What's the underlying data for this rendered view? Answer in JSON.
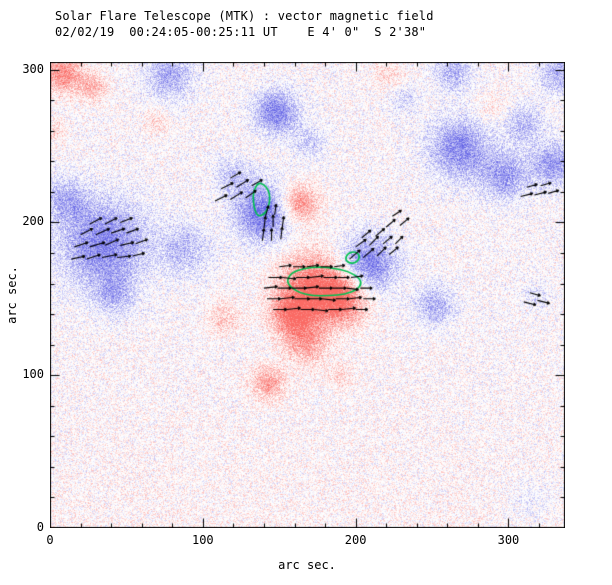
{
  "chart_data": {
    "type": "heatmap",
    "title": "Solar Flare Telescope (MTK) : vector magnetic field",
    "subtitle": "02/02/19  00:24:05-00:25:11 UT    E 4' 0\"  S 2'38\"",
    "xlabel": "arc sec.",
    "ylabel": "arc sec.",
    "xlim": [
      0,
      337
    ],
    "ylim": [
      0,
      305
    ],
    "xticks": [
      0,
      100,
      200,
      300
    ],
    "yticks": [
      0,
      100,
      200,
      300
    ],
    "minor_tick_step": 20,
    "grid": false,
    "legend": "none",
    "colors": {
      "positive_polarity": "#fa6a64",
      "negative_polarity": "#6464e6",
      "contour": "#00c050",
      "vector": "#000000",
      "axis": "#000000",
      "background": "#ffffff"
    },
    "noise_amplitude": 0.5,
    "noise_threshold": 0.06,
    "bias_bottom": 0.07,
    "bias_top_y": 130,
    "blobs": [
      [
        35,
        186,
        20,
        -0.85
      ],
      [
        88,
        182,
        12,
        -0.45
      ],
      [
        42,
        152,
        9,
        -0.45
      ],
      [
        10,
        215,
        10,
        -0.5
      ],
      [
        140,
        206,
        13,
        -0.95
      ],
      [
        148,
        272,
        10,
        -0.85
      ],
      [
        78,
        296,
        11,
        -0.6
      ],
      [
        120,
        230,
        9,
        -0.4
      ],
      [
        208,
        172,
        13,
        -0.9
      ],
      [
        252,
        146,
        9,
        -0.55
      ],
      [
        268,
        248,
        14,
        -0.8
      ],
      [
        298,
        230,
        11,
        -0.65
      ],
      [
        330,
        238,
        10,
        -0.7
      ],
      [
        310,
        264,
        9,
        -0.5
      ],
      [
        264,
        298,
        9,
        -0.5
      ],
      [
        333,
        297,
        9,
        -0.55
      ],
      [
        232,
        280,
        7,
        -0.3
      ],
      [
        318,
        152,
        6,
        -0.25
      ],
      [
        170,
        252,
        8,
        -0.35
      ],
      [
        315,
        18,
        12,
        -0.18
      ],
      [
        8,
        297,
        9,
        0.8
      ],
      [
        28,
        289,
        7,
        0.5
      ],
      [
        70,
        266,
        6,
        0.3
      ],
      [
        163,
        212,
        9,
        0.85
      ],
      [
        172,
        158,
        16,
        0.95
      ],
      [
        192,
        150,
        12,
        0.85
      ],
      [
        158,
        139,
        10,
        0.8
      ],
      [
        168,
        120,
        10,
        0.6
      ],
      [
        143,
        95,
        8,
        0.65
      ],
      [
        114,
        137,
        8,
        0.4
      ],
      [
        190,
        100,
        6,
        0.3
      ],
      [
        222,
        297,
        8,
        0.3
      ],
      [
        290,
        274,
        7,
        0.25
      ],
      [
        3,
        260,
        6,
        0.3
      ]
    ],
    "contours": [
      [
        [
          136,
          226
        ],
        [
          140,
          225
        ],
        [
          143,
          221
        ],
        [
          144,
          216
        ],
        [
          143,
          210
        ],
        [
          140,
          205
        ],
        [
          136,
          204
        ],
        [
          134,
          208
        ],
        [
          133,
          214
        ],
        [
          133,
          220
        ]
      ],
      [
        [
          158,
          167
        ],
        [
          166,
          170
        ],
        [
          176,
          171
        ],
        [
          186,
          170
        ],
        [
          195,
          168
        ],
        [
          202,
          164
        ],
        [
          204,
          160
        ],
        [
          201,
          156
        ],
        [
          193,
          153
        ],
        [
          183,
          152
        ],
        [
          172,
          152
        ],
        [
          163,
          154
        ],
        [
          157,
          158
        ],
        [
          155,
          162
        ]
      ],
      [
        [
          195,
          180
        ],
        [
          200,
          181
        ],
        [
          203,
          178
        ],
        [
          201,
          174
        ],
        [
          196,
          173
        ],
        [
          193,
          176
        ]
      ]
    ],
    "vectors": [
      [
        14,
        176,
        9,
        2
      ],
      [
        24,
        176,
        9,
        3
      ],
      [
        34,
        177,
        10,
        2
      ],
      [
        44,
        177,
        9,
        1
      ],
      [
        54,
        178,
        8,
        2
      ],
      [
        16,
        184,
        9,
        3
      ],
      [
        26,
        184,
        10,
        3
      ],
      [
        36,
        185,
        9,
        4
      ],
      [
        46,
        185,
        9,
        2
      ],
      [
        56,
        186,
        8,
        3
      ],
      [
        20,
        192,
        8,
        4
      ],
      [
        30,
        192,
        9,
        4
      ],
      [
        40,
        193,
        9,
        3
      ],
      [
        50,
        193,
        8,
        3
      ],
      [
        26,
        199,
        8,
        4
      ],
      [
        36,
        199,
        8,
        4
      ],
      [
        46,
        200,
        8,
        3
      ],
      [
        108,
        214,
        8,
        4
      ],
      [
        118,
        215,
        8,
        5
      ],
      [
        128,
        216,
        7,
        5
      ],
      [
        112,
        222,
        8,
        4
      ],
      [
        122,
        223,
        8,
        5
      ],
      [
        132,
        224,
        7,
        4
      ],
      [
        118,
        229,
        7,
        4
      ],
      [
        139,
        188,
        1,
        8
      ],
      [
        145,
        188,
        0,
        8
      ],
      [
        151,
        189,
        1,
        8
      ],
      [
        140,
        196,
        1,
        8
      ],
      [
        146,
        197,
        0,
        8
      ],
      [
        152,
        197,
        1,
        7
      ],
      [
        141,
        204,
        2,
        7
      ],
      [
        147,
        205,
        1,
        7
      ],
      [
        146,
        143,
        9,
        0
      ],
      [
        155,
        143,
        9,
        1
      ],
      [
        164,
        143,
        9,
        0
      ],
      [
        173,
        143,
        9,
        -1
      ],
      [
        182,
        143,
        9,
        0
      ],
      [
        191,
        143,
        9,
        1
      ],
      [
        200,
        143,
        8,
        0
      ],
      [
        142,
        150,
        9,
        0
      ],
      [
        151,
        150,
        9,
        1
      ],
      [
        160,
        150,
        10,
        0
      ],
      [
        169,
        150,
        9,
        0
      ],
      [
        178,
        150,
        9,
        -1
      ],
      [
        187,
        150,
        9,
        0
      ],
      [
        196,
        150,
        8,
        1
      ],
      [
        205,
        150,
        8,
        0
      ],
      [
        140,
        157,
        9,
        1
      ],
      [
        149,
        157,
        9,
        0
      ],
      [
        158,
        157,
        10,
        0
      ],
      [
        167,
        157,
        9,
        1
      ],
      [
        176,
        157,
        9,
        0
      ],
      [
        185,
        157,
        9,
        0
      ],
      [
        194,
        157,
        8,
        -1
      ],
      [
        203,
        157,
        8,
        0
      ],
      [
        143,
        164,
        9,
        0
      ],
      [
        152,
        164,
        9,
        -1
      ],
      [
        161,
        164,
        9,
        0
      ],
      [
        170,
        164,
        9,
        1
      ],
      [
        179,
        164,
        9,
        0
      ],
      [
        188,
        164,
        8,
        0
      ],
      [
        197,
        164,
        8,
        1
      ],
      [
        150,
        171,
        8,
        1
      ],
      [
        159,
        171,
        8,
        0
      ],
      [
        168,
        171,
        8,
        1
      ],
      [
        177,
        171,
        8,
        0
      ],
      [
        186,
        171,
        7,
        1
      ],
      [
        196,
        176,
        7,
        6
      ],
      [
        205,
        177,
        7,
        6
      ],
      [
        214,
        178,
        6,
        6
      ],
      [
        222,
        179,
        6,
        5
      ],
      [
        200,
        184,
        7,
        5
      ],
      [
        209,
        185,
        6,
        6
      ],
      [
        218,
        186,
        6,
        5
      ],
      [
        226,
        186,
        5,
        5
      ],
      [
        204,
        190,
        6,
        5
      ],
      [
        213,
        191,
        6,
        5
      ],
      [
        308,
        217,
        8,
        2
      ],
      [
        317,
        218,
        8,
        2
      ],
      [
        326,
        219,
        7,
        2
      ],
      [
        312,
        223,
        7,
        2
      ],
      [
        321,
        224,
        7,
        2
      ],
      [
        310,
        148,
        8,
        -2
      ],
      [
        319,
        149,
        8,
        -2
      ],
      [
        314,
        154,
        7,
        -2
      ],
      [
        220,
        197,
        6,
        5
      ],
      [
        229,
        198,
        6,
        5
      ],
      [
        224,
        204,
        6,
        4
      ]
    ]
  }
}
